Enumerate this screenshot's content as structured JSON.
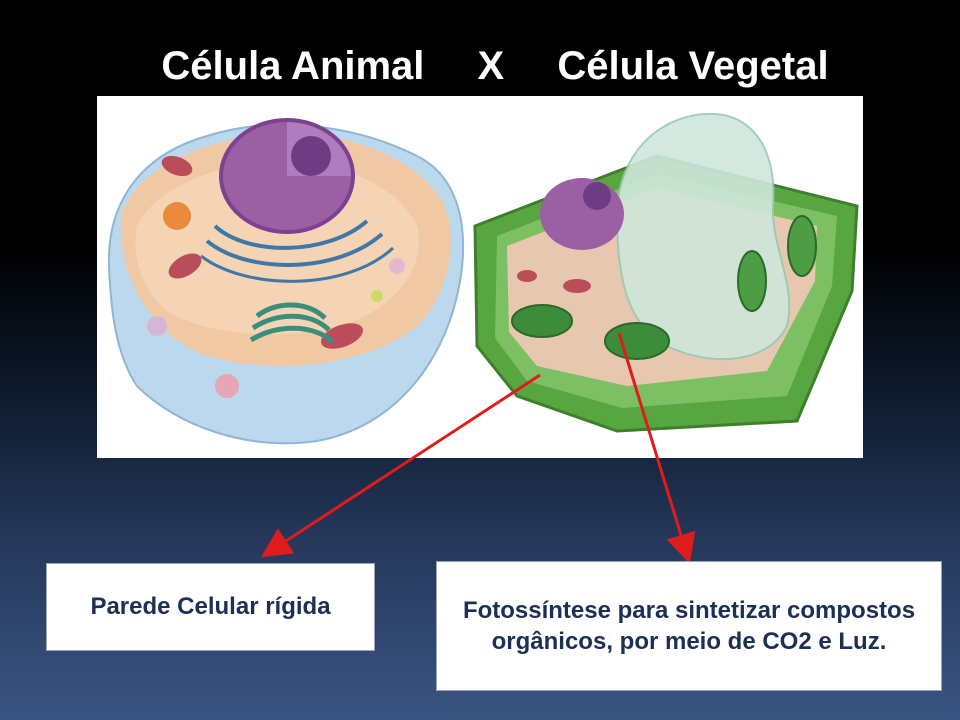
{
  "title": {
    "left": "Célula Animal",
    "separator": "X",
    "right": "Célula Vegetal"
  },
  "boxes": {
    "cell_wall": "Parede Celular rígida",
    "photosynthesis": "Fotossíntese para sintetizar compostos orgânicos, por meio de CO2 e Luz."
  },
  "colors": {
    "arrow": "#e01b1b",
    "box_text": "#1c2f55",
    "title": "#ffffff"
  }
}
